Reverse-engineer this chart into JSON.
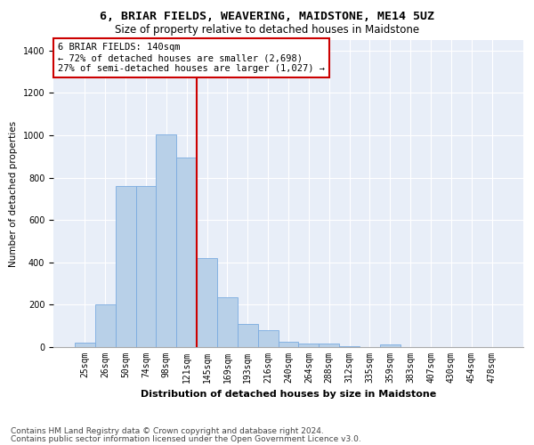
{
  "title": "6, BRIAR FIELDS, WEAVERING, MAIDSTONE, ME14 5UZ",
  "subtitle": "Size of property relative to detached houses in Maidstone",
  "xlabel": "Distribution of detached houses by size in Maidstone",
  "ylabel": "Number of detached properties",
  "categories": [
    "25sqm",
    "26sqm",
    "50sqm",
    "74sqm",
    "98sqm",
    "121sqm",
    "145sqm",
    "169sqm",
    "193sqm",
    "216sqm",
    "240sqm",
    "264sqm",
    "288sqm",
    "312sqm",
    "335sqm",
    "359sqm",
    "383sqm",
    "407sqm",
    "430sqm",
    "454sqm",
    "478sqm"
  ],
  "values": [
    20,
    200,
    760,
    760,
    1005,
    895,
    420,
    235,
    110,
    80,
    25,
    18,
    18,
    5,
    0,
    12,
    0,
    0,
    0,
    0,
    0
  ],
  "bar_color": "#b8d0e8",
  "bar_edge_color": "#7aabe0",
  "vline_x_index": 6,
  "vline_color": "#cc0000",
  "annotation_text": "6 BRIAR FIELDS: 140sqm\n← 72% of detached houses are smaller (2,698)\n27% of semi-detached houses are larger (1,027) →",
  "annotation_box_color": "#ffffff",
  "annotation_box_edge": "#cc0000",
  "ylim": [
    0,
    1450
  ],
  "yticks": [
    0,
    200,
    400,
    600,
    800,
    1000,
    1200,
    1400
  ],
  "bg_color": "#e8eef8",
  "footer1": "Contains HM Land Registry data © Crown copyright and database right 2024.",
  "footer2": "Contains public sector information licensed under the Open Government Licence v3.0.",
  "title_fontsize": 9.5,
  "subtitle_fontsize": 8.5,
  "xlabel_fontsize": 8,
  "ylabel_fontsize": 7.5,
  "tick_fontsize": 7,
  "annot_fontsize": 7.5,
  "footer_fontsize": 6.5
}
